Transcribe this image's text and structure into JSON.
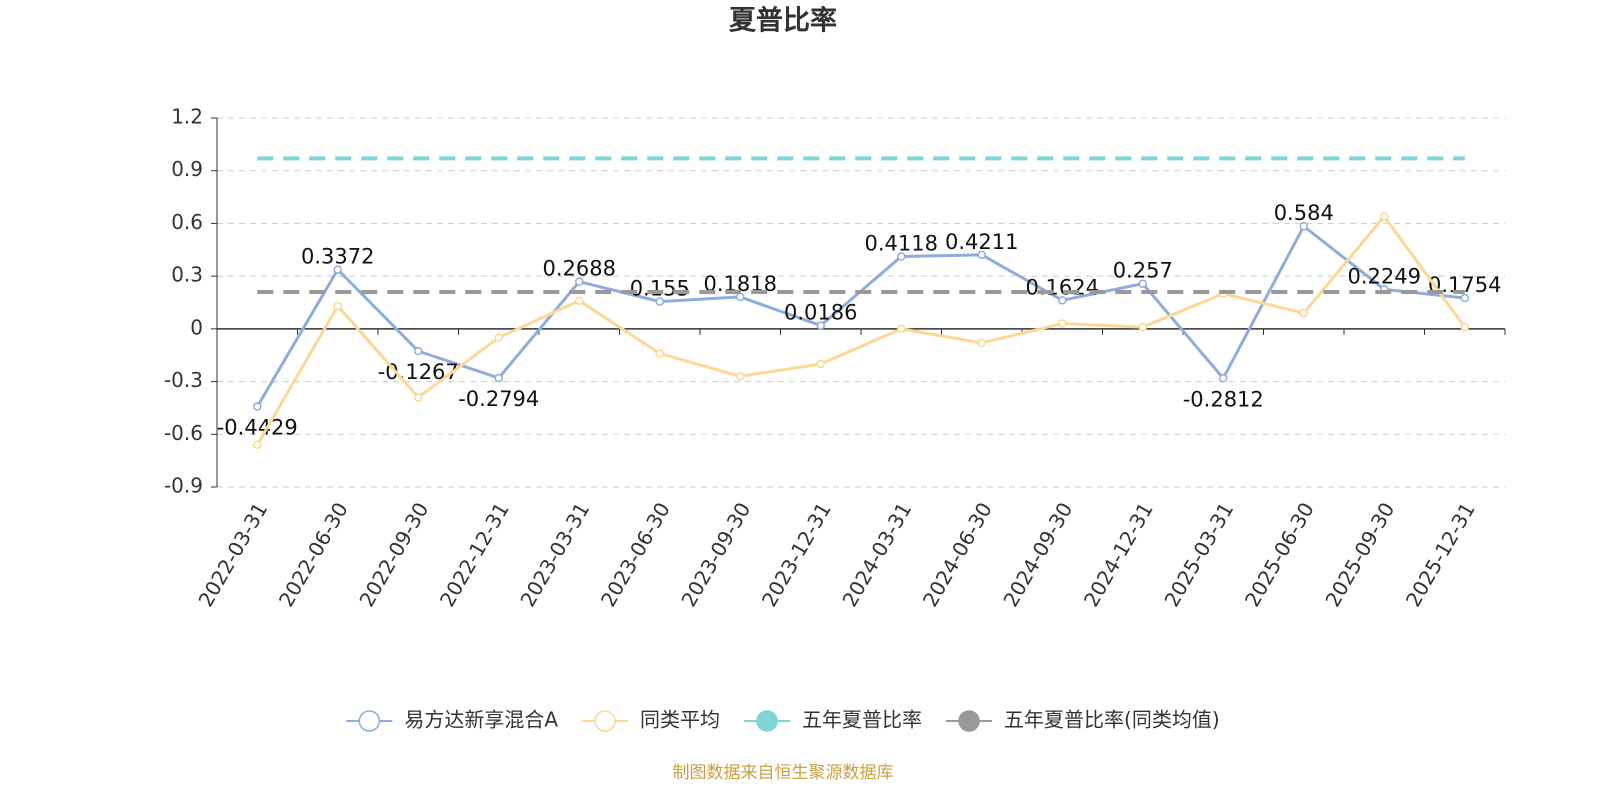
{
  "chart_data": {
    "type": "line",
    "title": "夏普比率",
    "categories": [
      "2022-03-31",
      "2022-06-30",
      "2022-09-30",
      "2022-12-31",
      "2023-03-31",
      "2023-06-30",
      "2023-09-30",
      "2023-12-31",
      "2024-03-31",
      "2024-06-30",
      "2024-09-30",
      "2024-12-31",
      "2025-03-31",
      "2025-06-30",
      "2025-09-30",
      "2025-12-31"
    ],
    "series": [
      {
        "name": "易方达新享混合A",
        "color": "#8eaddb",
        "values": [
          -0.4429,
          0.3372,
          -0.1267,
          -0.2794,
          0.2688,
          0.155,
          0.1818,
          0.0186,
          0.4118,
          0.4211,
          0.1624,
          0.257,
          -0.2812,
          0.584,
          0.2249,
          0.1754
        ]
      },
      {
        "name": "同类平均",
        "color": "#fcd895",
        "values": [
          -0.66,
          0.13,
          -0.39,
          -0.05,
          0.16,
          -0.14,
          -0.27,
          -0.2,
          0.0,
          -0.08,
          0.03,
          0.01,
          0.2,
          0.09,
          0.64,
          0.01
        ]
      },
      {
        "name": "五年夏普比率",
        "color": "#7fd4d6",
        "value": 0.97
      },
      {
        "name": "五年夏普比率(同类均值)",
        "color": "#999999",
        "value": 0.21
      }
    ],
    "ylim": [
      -0.9,
      1.2
    ],
    "yticks": [
      -0.9,
      -0.6,
      -0.3,
      0,
      0.3,
      0.6,
      0.9,
      1.2
    ],
    "grid": true,
    "footer": "制图数据来自恒生聚源数据库"
  }
}
